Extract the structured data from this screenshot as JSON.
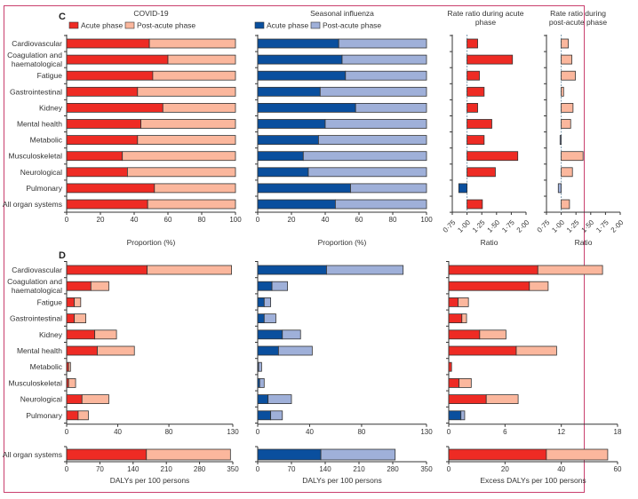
{
  "panels": {
    "c_label": "C",
    "d_label": "D"
  },
  "colors": {
    "covid_acute": "#ee2b24",
    "covid_post": "#fbb79d",
    "flu_acute": "#0a4f9e",
    "flu_post": "#9fb0d9",
    "frame": "#c9406e"
  },
  "categories": [
    "Cardiovascular",
    "Coagulation and haematological",
    "Fatigue",
    "Gastrointestinal",
    "Kidney",
    "Mental health",
    "Metabolic",
    "Musculoskeletal",
    "Neurological",
    "Pulmonary",
    "All organ systems"
  ],
  "category_lines": [
    [
      "Cardiovascular"
    ],
    [
      "Coagulation and",
      "haematological"
    ],
    [
      "Fatigue"
    ],
    [
      "Gastrointestinal"
    ],
    [
      "Kidney"
    ],
    [
      "Mental health"
    ],
    [
      "Metabolic"
    ],
    [
      "Musculoskeletal"
    ],
    [
      "Neurological"
    ],
    [
      "Pulmonary"
    ],
    [
      "All organ systems"
    ]
  ],
  "chart_data": [
    {
      "id": "c-covid",
      "type": "bar",
      "orientation": "horizontal",
      "stacked": true,
      "title": "COVID-19",
      "xlabel": "Proportion (%)",
      "xlim": [
        0,
        100
      ],
      "xticks": [
        "0",
        "20",
        "40",
        "60",
        "80",
        "100"
      ],
      "legend": [
        "Acute phase",
        "Post-acute phase"
      ],
      "legend_position": "top",
      "series": [
        {
          "name": "Acute phase",
          "values": [
            49,
            60,
            51,
            42,
            57,
            44,
            42,
            33,
            36,
            52,
            48
          ]
        },
        {
          "name": "Post-acute phase",
          "values": [
            51,
            40,
            49,
            58,
            43,
            56,
            58,
            67,
            64,
            48,
            52
          ]
        }
      ]
    },
    {
      "id": "c-flu",
      "type": "bar",
      "orientation": "horizontal",
      "stacked": true,
      "title": "Seasonal influenza",
      "xlabel": "Proportion (%)",
      "xlim": [
        0,
        100
      ],
      "xticks": [
        "0",
        "20",
        "40",
        "60",
        "80",
        "100"
      ],
      "legend": [
        "Acute phase",
        "Post-acute phase"
      ],
      "legend_position": "top",
      "series": [
        {
          "name": "Acute phase",
          "values": [
            48,
            50,
            52,
            37,
            58,
            40,
            36,
            27,
            30,
            55,
            46
          ]
        },
        {
          "name": "Post-acute phase",
          "values": [
            52,
            50,
            48,
            63,
            42,
            60,
            64,
            73,
            70,
            45,
            54
          ]
        }
      ]
    },
    {
      "id": "c-rr-acute",
      "type": "bar",
      "orientation": "horizontal",
      "title": "Rate ratio during acute phase",
      "title_lines": [
        "Rate ratio during acute",
        "phase"
      ],
      "xlabel": "Ratio",
      "xlim": [
        0.75,
        2.0
      ],
      "reference": 1.0,
      "xticks": [
        "0·75",
        "1·00",
        "1·25",
        "1·50",
        "1·75",
        "2·00"
      ],
      "values": [
        1.18,
        1.77,
        1.21,
        1.29,
        1.18,
        1.42,
        1.29,
        1.86,
        1.48,
        0.86,
        1.26
      ]
    },
    {
      "id": "c-rr-post",
      "type": "bar",
      "orientation": "horizontal",
      "title": "Rate ratio during post-acute phase",
      "title_lines": [
        "Rate ratio during",
        "post-acute phase"
      ],
      "xlabel": "Ratio",
      "xlim": [
        0.75,
        2.0
      ],
      "reference": 1.0,
      "xticks": [
        "0·75",
        "1·00",
        "1·25",
        "1·50",
        "1·75",
        "2·00"
      ],
      "values": [
        1.12,
        1.18,
        1.24,
        1.04,
        1.2,
        1.16,
        0.98,
        1.37,
        1.19,
        0.95,
        1.14
      ]
    },
    {
      "id": "d-covid",
      "type": "bar",
      "orientation": "horizontal",
      "stacked": true,
      "xlabel": "DALYs per 100 persons",
      "xlim": [
        0,
        130
      ],
      "xticks": [
        "0",
        "40",
        "80",
        "130"
      ],
      "xlim_total": [
        0,
        350
      ],
      "xticks_total": [
        "0",
        "70",
        "140",
        "210",
        "280",
        "350"
      ],
      "series": [
        {
          "name": "Acute phase",
          "values": [
            63,
            19,
            6,
            6,
            22,
            24,
            1.5,
            1.5,
            12,
            9,
            168
          ]
        },
        {
          "name": "Post-acute phase",
          "values": [
            66,
            14,
            5,
            9,
            17,
            29,
            1.5,
            5.5,
            21,
            8,
            177
          ]
        }
      ]
    },
    {
      "id": "d-flu",
      "type": "bar",
      "orientation": "horizontal",
      "stacked": true,
      "xlabel": "DALYs per 100 persons",
      "xlim": [
        0,
        130
      ],
      "xticks": [
        "0",
        "40",
        "80",
        "130"
      ],
      "xlim_total": [
        0,
        350
      ],
      "xticks_total": [
        "0",
        "70",
        "140",
        "210",
        "280",
        "350"
      ],
      "series": [
        {
          "name": "Acute phase",
          "values": [
            53,
            11,
            5,
            5,
            19,
            16,
            0.7,
            1.5,
            8,
            10,
            131
          ]
        },
        {
          "name": "Post-acute phase",
          "values": [
            59,
            12,
            5,
            9,
            14,
            26,
            2.3,
            3.5,
            18,
            9,
            154
          ]
        }
      ]
    },
    {
      "id": "d-excess",
      "type": "bar",
      "orientation": "horizontal",
      "stacked": true,
      "xlabel": "Excess DALYs per 100 persons",
      "xlim": [
        0,
        18
      ],
      "xticks": [
        "0",
        "6",
        "12",
        "18"
      ],
      "xlim_total": [
        0,
        60
      ],
      "xticks_total": [
        "0",
        "20",
        "40",
        "60"
      ],
      "series": [
        {
          "name": "Acute phase",
          "values": [
            9.5,
            8.6,
            1.0,
            1.4,
            3.3,
            7.2,
            0.3,
            1.1,
            4.0,
            1.3,
            34.7
          ]
        },
        {
          "name": "Post-acute phase",
          "values": [
            6.9,
            2.0,
            1.1,
            0.5,
            2.8,
            4.3,
            0,
            1.3,
            3.4,
            0.4,
            21.8
          ]
        }
      ],
      "favors_influenza": [
        false,
        false,
        false,
        false,
        false,
        false,
        false,
        false,
        false,
        true,
        false
      ]
    }
  ]
}
